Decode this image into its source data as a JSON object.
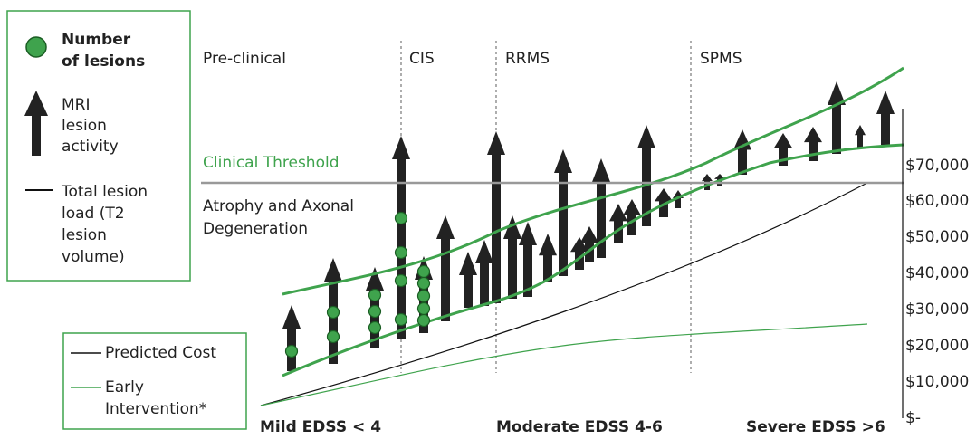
{
  "legend_top": {
    "items": [
      {
        "label_lines": [
          "Number",
          "of lesions"
        ]
      },
      {
        "label_lines": [
          "MRI",
          "lesion",
          "activity"
        ]
      },
      {
        "label_lines": [
          "Total lesion",
          "load (T2",
          "lesion",
          "volume)"
        ]
      }
    ]
  },
  "legend_bottom": {
    "items": [
      {
        "label_lines": [
          "Predicted Cost"
        ]
      },
      {
        "label_lines": [
          "Early",
          "Intervention*"
        ]
      }
    ]
  },
  "phases": [
    "Pre-clinical",
    "CIS",
    "RRMS",
    "SPMS"
  ],
  "annotations": {
    "clinical_threshold": "Clinical Threshold",
    "atrophy_lines": [
      "Atrophy and Axonal",
      "Degeneration"
    ]
  },
  "cost_axis": {
    "ticks": [
      "$70,000",
      "$60,000",
      "$50,000",
      "$40,000",
      "$30,000",
      "$20,000",
      "$10,000",
      "$-"
    ]
  },
  "stages": [
    "Mild EDSS < 4",
    "Moderate EDSS 4-6",
    "Severe EDSS >6"
  ]
}
